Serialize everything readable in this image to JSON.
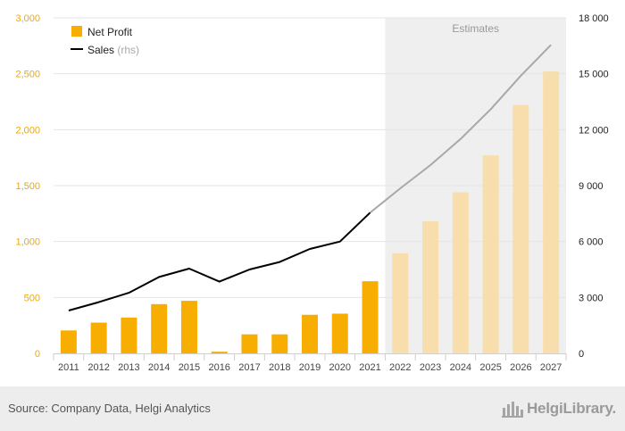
{
  "chart_data": {
    "type": "bar",
    "categories": [
      "2011",
      "2012",
      "2013",
      "2014",
      "2015",
      "2016",
      "2017",
      "2018",
      "2019",
      "2020",
      "2021",
      "2022",
      "2023",
      "2024",
      "2025",
      "2026",
      "2027"
    ],
    "series": [
      {
        "name": "Net Profit",
        "type": "bar",
        "axis": "left",
        "values": [
          205,
          275,
          320,
          440,
          470,
          15,
          170,
          170,
          345,
          355,
          645,
          895,
          1180,
          1440,
          1770,
          2220,
          2520
        ]
      },
      {
        "name": "Sales",
        "name_suffix": "(rhs)",
        "type": "line",
        "axis": "right",
        "values": [
          2300,
          2750,
          3250,
          4100,
          4550,
          3850,
          4500,
          4900,
          5600,
          6000,
          7550,
          8850,
          10100,
          11500,
          13100,
          14900,
          16550
        ]
      }
    ],
    "estimates_label": "Estimates",
    "estimates_from": "2022",
    "y_left": {
      "ylim": [
        0,
        3000
      ],
      "ticks": [
        0,
        500,
        1000,
        1500,
        2000,
        2500,
        3000
      ],
      "tick_labels": [
        "0",
        "500",
        "1,000",
        "1,500",
        "2,000",
        "2,500",
        "3,000"
      ]
    },
    "y_right": {
      "ylim": [
        0,
        18000
      ],
      "ticks": [
        0,
        3000,
        6000,
        9000,
        12000,
        15000,
        18000
      ],
      "tick_labels": [
        "0",
        "3 000",
        "6 000",
        "9 000",
        "12 000",
        "15 000",
        "18 000"
      ]
    },
    "legend_position": "top-left",
    "grid": true
  },
  "colors": {
    "bar_actual": "#f7ae00",
    "bar_estimate": "#f7deac",
    "line_actual": "#000000",
    "line_estimate": "#a8a8a8",
    "estimate_region": "#efefef",
    "left_axis_text": "#f0a800",
    "right_axis_text": "#222222",
    "grid": "#e4e4e4"
  },
  "footer": {
    "source": "Source: Company Data, Helgi Analytics",
    "brand": "HelgiLibrary."
  }
}
